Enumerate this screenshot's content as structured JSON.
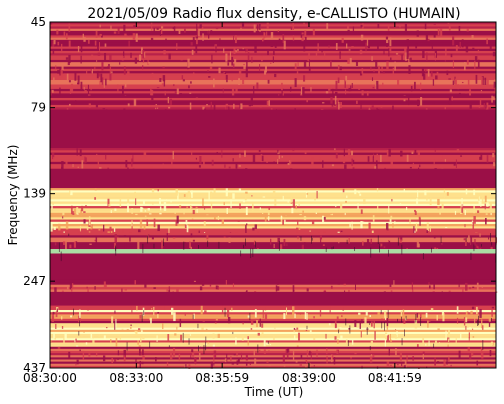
{
  "chart_data": {
    "type": "heatmap",
    "title": "2021/05/09  Radio flux density, e-CALLISTO (HUMAIN)",
    "xlabel": "Time (UT)",
    "ylabel": "Frequency (MHz)",
    "x_ticks": [
      "08:30:00",
      "08:33:00",
      "08:35:59",
      "08:39:00",
      "08:41:59"
    ],
    "y_ticks": [
      "45",
      "79",
      "139",
      "247",
      "437"
    ],
    "xlim": [
      "08:30:00",
      "08:45:30"
    ],
    "ylim": [
      45,
      437
    ],
    "colormap": "Spectral_r",
    "colors": {
      "background": "#9b0f47",
      "mid": "#d6404e",
      "orange": "#f4a45e",
      "yellow": "#fee08b",
      "pale": "#ffffbf",
      "green": "#abdda4",
      "trace": "#3c0a28"
    },
    "bands": [
      {
        "f_low": 45,
        "f_high": 73,
        "level": "textured-mid"
      },
      {
        "f_low": 73,
        "f_high": 80,
        "level": "textured-mid"
      },
      {
        "f_low": 80,
        "f_high": 103,
        "level": "quiet"
      },
      {
        "f_low": 103,
        "f_high": 118,
        "level": "textured-mid"
      },
      {
        "f_low": 118,
        "f_high": 134,
        "level": "quiet"
      },
      {
        "f_low": 134,
        "f_high": 160,
        "level": "bright"
      },
      {
        "f_low": 160,
        "f_high": 180,
        "level": "bright-mixed"
      },
      {
        "f_low": 180,
        "f_high": 200,
        "level": "textured-mid"
      },
      {
        "f_low": 200,
        "f_high": 206,
        "level": "green-line"
      },
      {
        "f_low": 206,
        "f_high": 245,
        "level": "quiet"
      },
      {
        "f_low": 245,
        "f_high": 265,
        "level": "textured-mid"
      },
      {
        "f_low": 265,
        "f_high": 290,
        "level": "quiet"
      },
      {
        "f_low": 290,
        "f_high": 340,
        "level": "bright-mixed"
      },
      {
        "f_low": 340,
        "f_high": 380,
        "level": "bright"
      },
      {
        "f_low": 380,
        "f_high": 437,
        "level": "textured-mid"
      }
    ]
  }
}
